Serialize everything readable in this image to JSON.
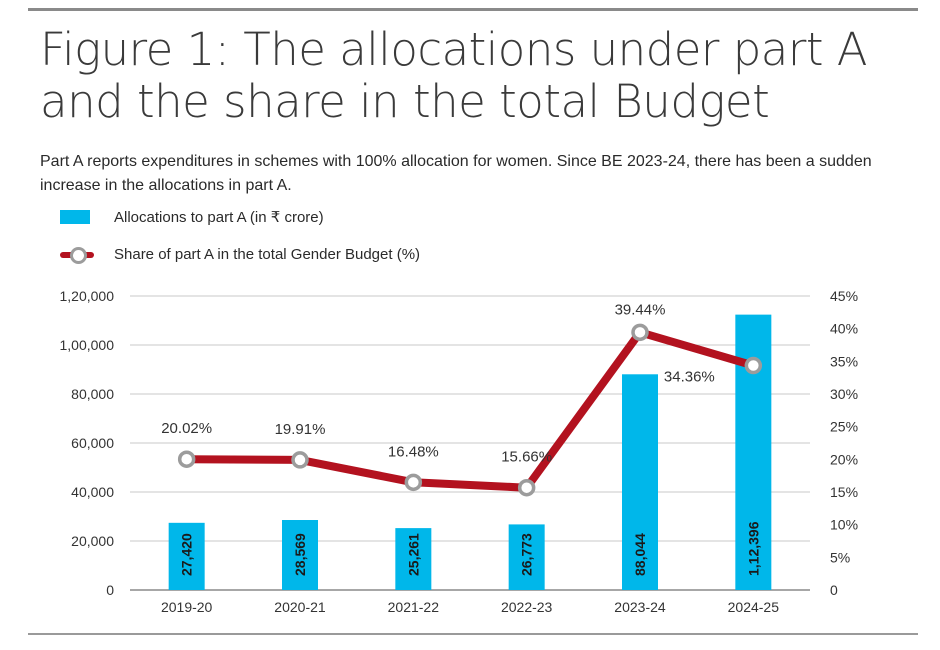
{
  "figure": {
    "title": "Figure 1: The allocations under part A and the share in the total Budget",
    "subtitle": "Part A reports expenditures in schemes with 100% allocation for women. Since BE 2023-24, there has been a sudden increase in the allocations in part A."
  },
  "colors": {
    "bar": "#00b7ea",
    "line": "#b3121f",
    "marker_ring": "#9c9c9c",
    "grid": "#c8c8c8"
  },
  "chart_data": {
    "type": "bar",
    "title": "Figure 1: The allocations under part A and the share in the total Budget",
    "categories": [
      "2019-20",
      "2020-21",
      "2021-22",
      "2022-23",
      "2023-24",
      "2024-25"
    ],
    "series": [
      {
        "name": "Allocations to part A (in ₹ crore)",
        "type": "bar",
        "axis": "left",
        "values": [
          27420,
          28569,
          25261,
          26773,
          88044,
          112396
        ],
        "labels": [
          "27,420",
          "28,569",
          "25,261",
          "26,773",
          "88,044",
          "1,12,396"
        ]
      },
      {
        "name": "Share of part A in the total Gender Budget (%)",
        "type": "line",
        "axis": "right",
        "values": [
          20.02,
          19.91,
          16.48,
          15.66,
          39.44,
          34.36
        ],
        "labels": [
          "20.02%",
          "19.91%",
          "16.48%",
          "15.66%",
          "39.44%",
          "34.36%"
        ]
      }
    ],
    "y_left": {
      "lim": [
        0,
        120000
      ],
      "ticks": [
        0,
        20000,
        40000,
        60000,
        80000,
        100000,
        120000
      ],
      "tick_labels": [
        "0",
        "20,000",
        "40,000",
        "60,000",
        "80,000",
        "1,00,000",
        "1,20,000"
      ]
    },
    "y_right": {
      "lim": [
        0,
        45
      ],
      "ticks": [
        0,
        5,
        10,
        15,
        20,
        25,
        30,
        35,
        40,
        45
      ],
      "tick_labels": [
        "0",
        "5%",
        "10%",
        "15%",
        "20%",
        "25%",
        "30%",
        "35%",
        "40%",
        "45%"
      ]
    },
    "grid": true,
    "legend": "top-left"
  }
}
